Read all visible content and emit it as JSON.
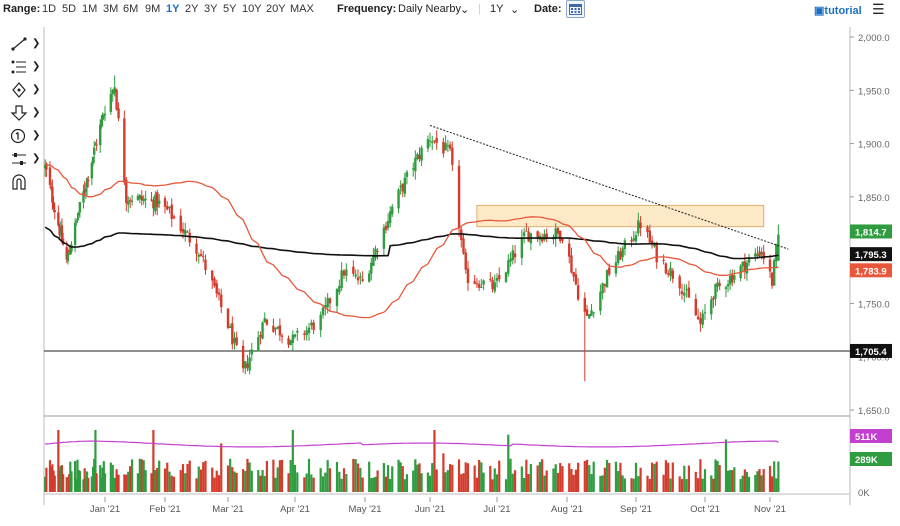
{
  "toolbar": {
    "range_label": "Range:",
    "ranges": [
      "1D",
      "5D",
      "1M",
      "3M",
      "6M",
      "9M",
      "1Y",
      "2Y",
      "3Y",
      "5Y",
      "10Y",
      "20Y",
      "MAX"
    ],
    "active_range": "1Y",
    "frequency_label": "Frequency:",
    "frequency_value": "Daily Nearby",
    "period_value": "1Y",
    "date_label": "Date:",
    "tutorial_label": "tutorial"
  },
  "tools": [
    "line-tool-icon",
    "fibonacci-tool-icon",
    "move-tool-icon",
    "arrow-down-tool-icon",
    "number-marker-icon",
    "measure-tool-icon",
    "magnet-icon"
  ],
  "colors": {
    "up": "#2e9c3f",
    "down": "#d43b2c",
    "ma_fast": "#e8573a",
    "ma_slow": "#111111",
    "volume_ma": "#c23fd0",
    "rectangle_fill": "#fde9c8",
    "rectangle_stroke": "#e0ad6b"
  },
  "chart_data": {
    "type": "candlestick",
    "x_ticks": [
      "Jan '21",
      "Feb '21",
      "Mar '21",
      "Apr '21",
      "May '21",
      "Jun '21",
      "Jul '21",
      "Aug '21",
      "Sep '21",
      "Oct '21",
      "Nov '21"
    ],
    "price_axis": {
      "ticks": [
        "2,000.0",
        "1,950.0",
        "1,900.0",
        "1,850.0",
        "1,800.0",
        "1,750.0",
        "1,700.0",
        "1,650.0"
      ],
      "range": [
        1650,
        2000
      ]
    },
    "volume_axis": {
      "ticks": [
        "0K"
      ],
      "range": [
        0,
        650000
      ]
    },
    "price_labels": [
      {
        "text": "1,814.7",
        "value": 1814.7,
        "color": "#2e9c3f"
      },
      {
        "text": "1,795.3",
        "value": 1795.3,
        "color": "#111111"
      },
      {
        "text": "1,783.9",
        "value": 1783.9,
        "color": "#e8573a"
      },
      {
        "text": "1,705.4",
        "value": 1705.4,
        "color": "#111111"
      }
    ],
    "volume_labels": [
      {
        "text": "511K",
        "value": 511000,
        "color": "#c23fd0"
      },
      {
        "text": "289K",
        "value": 289000,
        "color": "#2e9c3f"
      }
    ],
    "horizontal_line": 1705.4,
    "resistance_zone": {
      "from": "2021-06-22",
      "to": "2021-10-29",
      "low": 1822,
      "high": 1842
    },
    "trendline": [
      {
        "date": "2021-06-01",
        "price": 1917
      },
      {
        "date": "2021-11-05",
        "price": 1800
      }
    ],
    "keypoints": [
      {
        "date": "2020-11-12",
        "price": 1878
      },
      {
        "date": "2020-11-30",
        "price": 1790
      },
      {
        "date": "2020-12-20",
        "price": 1880
      },
      {
        "date": "2021-01-06",
        "price": 1955
      },
      {
        "date": "2021-01-12",
        "price": 1850
      },
      {
        "date": "2021-01-28",
        "price": 1845
      },
      {
        "date": "2021-02-03",
        "price": 1835
      },
      {
        "date": "2021-02-16",
        "price": 1800
      },
      {
        "date": "2021-03-01",
        "price": 1730
      },
      {
        "date": "2021-03-08",
        "price": 1685
      },
      {
        "date": "2021-03-18",
        "price": 1735
      },
      {
        "date": "2021-03-31",
        "price": 1715
      },
      {
        "date": "2021-04-12",
        "price": 1735
      },
      {
        "date": "2021-04-22",
        "price": 1780
      },
      {
        "date": "2021-04-30",
        "price": 1770
      },
      {
        "date": "2021-05-14",
        "price": 1840
      },
      {
        "date": "2021-05-24",
        "price": 1880
      },
      {
        "date": "2021-06-01",
        "price": 1906
      },
      {
        "date": "2021-06-10",
        "price": 1890
      },
      {
        "date": "2021-06-17",
        "price": 1775
      },
      {
        "date": "2021-06-30",
        "price": 1765
      },
      {
        "date": "2021-07-14",
        "price": 1815
      },
      {
        "date": "2021-07-30",
        "price": 1815
      },
      {
        "date": "2021-08-06",
        "price": 1760
      },
      {
        "date": "2021-08-10",
        "price": 1735
      },
      {
        "date": "2021-08-20",
        "price": 1780
      },
      {
        "date": "2021-09-03",
        "price": 1825
      },
      {
        "date": "2021-09-10",
        "price": 1795
      },
      {
        "date": "2021-09-20",
        "price": 1770
      },
      {
        "date": "2021-09-29",
        "price": 1730
      },
      {
        "date": "2021-10-05",
        "price": 1760
      },
      {
        "date": "2021-10-22",
        "price": 1790
      },
      {
        "date": "2021-10-28",
        "price": 1800
      },
      {
        "date": "2021-11-02",
        "price": 1770
      },
      {
        "date": "2021-11-05",
        "price": 1814.7
      }
    ],
    "wicks": [
      {
        "date": "2021-08-09",
        "low": 1677
      },
      {
        "date": "2021-01-06",
        "high": 1964
      }
    ]
  }
}
